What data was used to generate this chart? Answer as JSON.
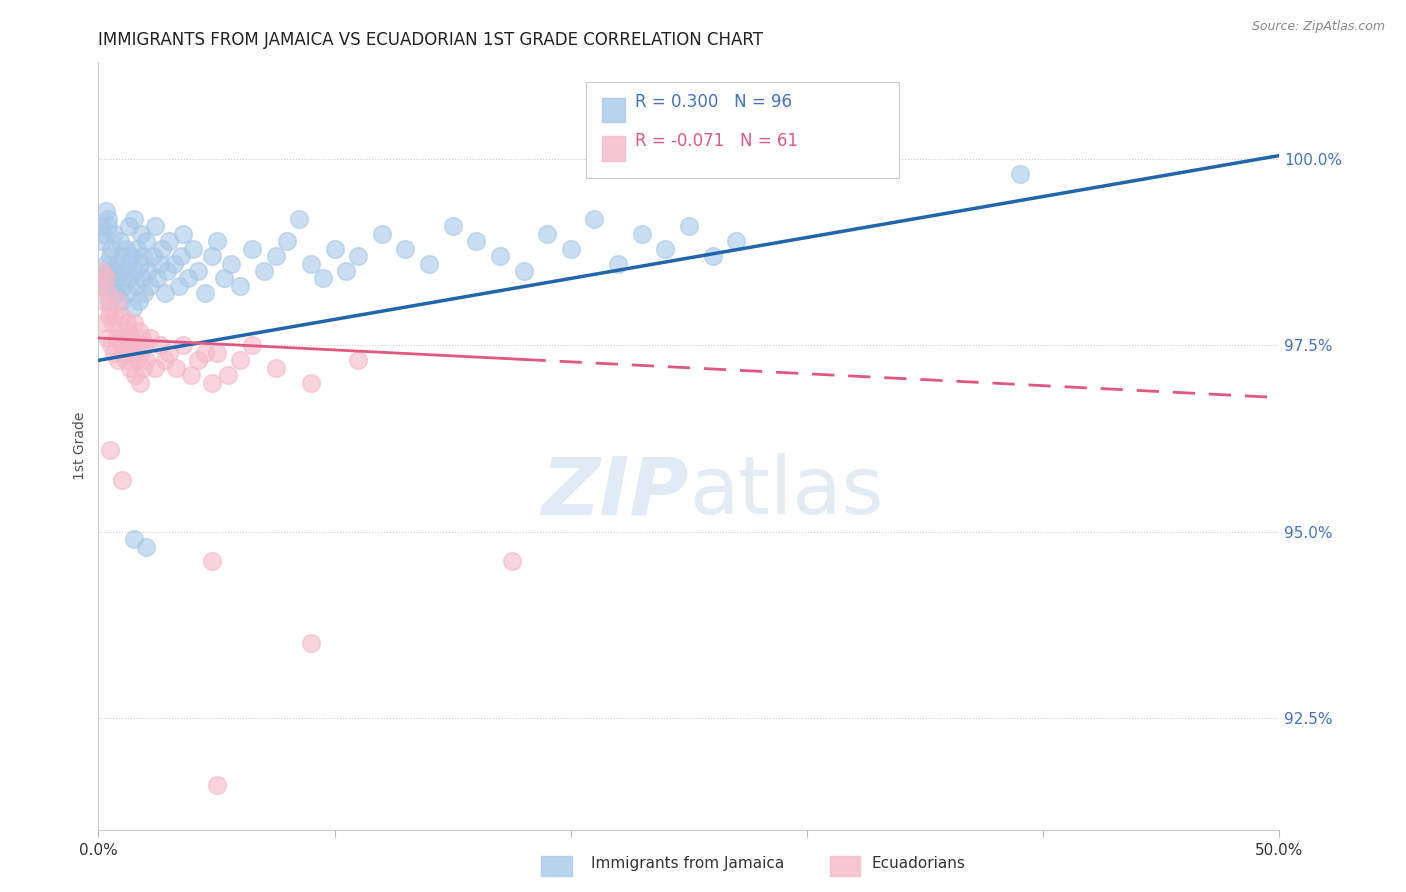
{
  "title": "IMMIGRANTS FROM JAMAICA VS ECUADORIAN 1ST GRADE CORRELATION CHART",
  "source": "Source: ZipAtlas.com",
  "ylabel": "1st Grade",
  "x_range": [
    0.0,
    50.0
  ],
  "y_range": [
    91.0,
    101.3
  ],
  "blue_R": 0.3,
  "blue_N": 96,
  "pink_R": -0.071,
  "pink_N": 61,
  "blue_color": "#a8c8e8",
  "pink_color": "#f5b8c8",
  "blue_line_color": "#2166ac",
  "pink_line_color": "#e05880",
  "blue_line_x0": 0.0,
  "blue_line_y0": 97.3,
  "blue_line_x1": 50.0,
  "blue_line_y1": 100.05,
  "pink_line_x0": 0.0,
  "pink_line_y0": 97.6,
  "pink_line_x1": 50.0,
  "pink_line_y1": 96.8,
  "pink_solid_end": 18.0,
  "legend_label_blue": "Immigrants from Jamaica",
  "legend_label_pink": "Ecuadorians",
  "blue_scatter": [
    [
      0.1,
      99.1
    ],
    [
      0.15,
      98.9
    ],
    [
      0.2,
      99.0
    ],
    [
      0.25,
      98.4
    ],
    [
      0.3,
      98.6
    ],
    [
      0.35,
      98.3
    ],
    [
      0.4,
      98.5
    ],
    [
      0.4,
      99.2
    ],
    [
      0.45,
      98.1
    ],
    [
      0.5,
      98.7
    ],
    [
      0.55,
      98.8
    ],
    [
      0.6,
      98.3
    ],
    [
      0.65,
      99.0
    ],
    [
      0.7,
      98.5
    ],
    [
      0.75,
      98.2
    ],
    [
      0.8,
      98.6
    ],
    [
      0.85,
      98.4
    ],
    [
      0.9,
      98.9
    ],
    [
      0.95,
      98.1
    ],
    [
      1.0,
      98.7
    ],
    [
      1.05,
      98.3
    ],
    [
      1.1,
      98.5
    ],
    [
      1.15,
      98.8
    ],
    [
      1.2,
      98.2
    ],
    [
      1.25,
      98.6
    ],
    [
      1.3,
      99.1
    ],
    [
      1.35,
      98.4
    ],
    [
      1.4,
      98.7
    ],
    [
      1.45,
      98.0
    ],
    [
      1.5,
      99.2
    ],
    [
      1.55,
      98.5
    ],
    [
      1.6,
      98.3
    ],
    [
      1.65,
      98.8
    ],
    [
      1.7,
      98.1
    ],
    [
      1.75,
      98.6
    ],
    [
      1.8,
      99.0
    ],
    [
      1.85,
      98.4
    ],
    [
      1.9,
      98.7
    ],
    [
      1.95,
      98.2
    ],
    [
      2.0,
      98.9
    ],
    [
      2.1,
      98.5
    ],
    [
      2.2,
      98.3
    ],
    [
      2.3,
      98.7
    ],
    [
      2.4,
      99.1
    ],
    [
      2.5,
      98.4
    ],
    [
      2.6,
      98.6
    ],
    [
      2.7,
      98.8
    ],
    [
      2.8,
      98.2
    ],
    [
      2.9,
      98.5
    ],
    [
      3.0,
      98.9
    ],
    [
      3.2,
      98.6
    ],
    [
      3.4,
      98.3
    ],
    [
      3.5,
      98.7
    ],
    [
      3.6,
      99.0
    ],
    [
      3.8,
      98.4
    ],
    [
      4.0,
      98.8
    ],
    [
      4.2,
      98.5
    ],
    [
      4.5,
      98.2
    ],
    [
      4.8,
      98.7
    ],
    [
      5.0,
      98.9
    ],
    [
      5.3,
      98.4
    ],
    [
      5.6,
      98.6
    ],
    [
      6.0,
      98.3
    ],
    [
      6.5,
      98.8
    ],
    [
      7.0,
      98.5
    ],
    [
      7.5,
      98.7
    ],
    [
      8.0,
      98.9
    ],
    [
      8.5,
      99.2
    ],
    [
      9.0,
      98.6
    ],
    [
      9.5,
      98.4
    ],
    [
      10.0,
      98.8
    ],
    [
      10.5,
      98.5
    ],
    [
      11.0,
      98.7
    ],
    [
      12.0,
      99.0
    ],
    [
      13.0,
      98.8
    ],
    [
      14.0,
      98.6
    ],
    [
      15.0,
      99.1
    ],
    [
      16.0,
      98.9
    ],
    [
      17.0,
      98.7
    ],
    [
      18.0,
      98.5
    ],
    [
      19.0,
      99.0
    ],
    [
      20.0,
      98.8
    ],
    [
      21.0,
      99.2
    ],
    [
      22.0,
      98.6
    ],
    [
      23.0,
      99.0
    ],
    [
      24.0,
      98.8
    ],
    [
      25.0,
      99.1
    ],
    [
      26.0,
      98.7
    ],
    [
      27.0,
      98.9
    ],
    [
      1.5,
      94.9
    ],
    [
      2.0,
      94.8
    ],
    [
      39.0,
      99.8
    ],
    [
      0.3,
      99.3
    ],
    [
      0.4,
      99.1
    ]
  ],
  "pink_scatter": [
    [
      0.1,
      98.3
    ],
    [
      0.15,
      98.5
    ],
    [
      0.2,
      98.1
    ],
    [
      0.25,
      97.8
    ],
    [
      0.3,
      98.4
    ],
    [
      0.35,
      97.6
    ],
    [
      0.4,
      98.2
    ],
    [
      0.45,
      97.9
    ],
    [
      0.5,
      98.0
    ],
    [
      0.55,
      97.5
    ],
    [
      0.6,
      97.8
    ],
    [
      0.65,
      97.4
    ],
    [
      0.7,
      97.9
    ],
    [
      0.75,
      97.6
    ],
    [
      0.8,
      98.1
    ],
    [
      0.85,
      97.3
    ],
    [
      0.9,
      97.7
    ],
    [
      0.95,
      97.5
    ],
    [
      1.0,
      97.9
    ],
    [
      1.05,
      97.4
    ],
    [
      1.1,
      97.6
    ],
    [
      1.15,
      97.3
    ],
    [
      1.2,
      97.8
    ],
    [
      1.25,
      97.5
    ],
    [
      1.3,
      97.7
    ],
    [
      1.35,
      97.2
    ],
    [
      1.4,
      97.6
    ],
    [
      1.45,
      97.4
    ],
    [
      1.5,
      97.8
    ],
    [
      1.55,
      97.1
    ],
    [
      1.6,
      97.5
    ],
    [
      1.65,
      97.3
    ],
    [
      1.7,
      97.7
    ],
    [
      1.75,
      97.0
    ],
    [
      1.8,
      97.4
    ],
    [
      1.85,
      97.6
    ],
    [
      1.9,
      97.2
    ],
    [
      1.95,
      97.5
    ],
    [
      2.0,
      97.3
    ],
    [
      2.2,
      97.6
    ],
    [
      2.4,
      97.2
    ],
    [
      2.6,
      97.5
    ],
    [
      2.8,
      97.3
    ],
    [
      3.0,
      97.4
    ],
    [
      3.3,
      97.2
    ],
    [
      3.6,
      97.5
    ],
    [
      3.9,
      97.1
    ],
    [
      4.2,
      97.3
    ],
    [
      4.5,
      97.4
    ],
    [
      4.8,
      97.0
    ],
    [
      5.0,
      97.4
    ],
    [
      5.5,
      97.1
    ],
    [
      6.0,
      97.3
    ],
    [
      6.5,
      97.5
    ],
    [
      7.5,
      97.2
    ],
    [
      9.0,
      97.0
    ],
    [
      11.0,
      97.3
    ],
    [
      0.5,
      96.1
    ],
    [
      1.0,
      95.7
    ],
    [
      4.8,
      94.6
    ],
    [
      17.5,
      94.6
    ],
    [
      9.0,
      93.5
    ],
    [
      5.0,
      91.6
    ]
  ]
}
